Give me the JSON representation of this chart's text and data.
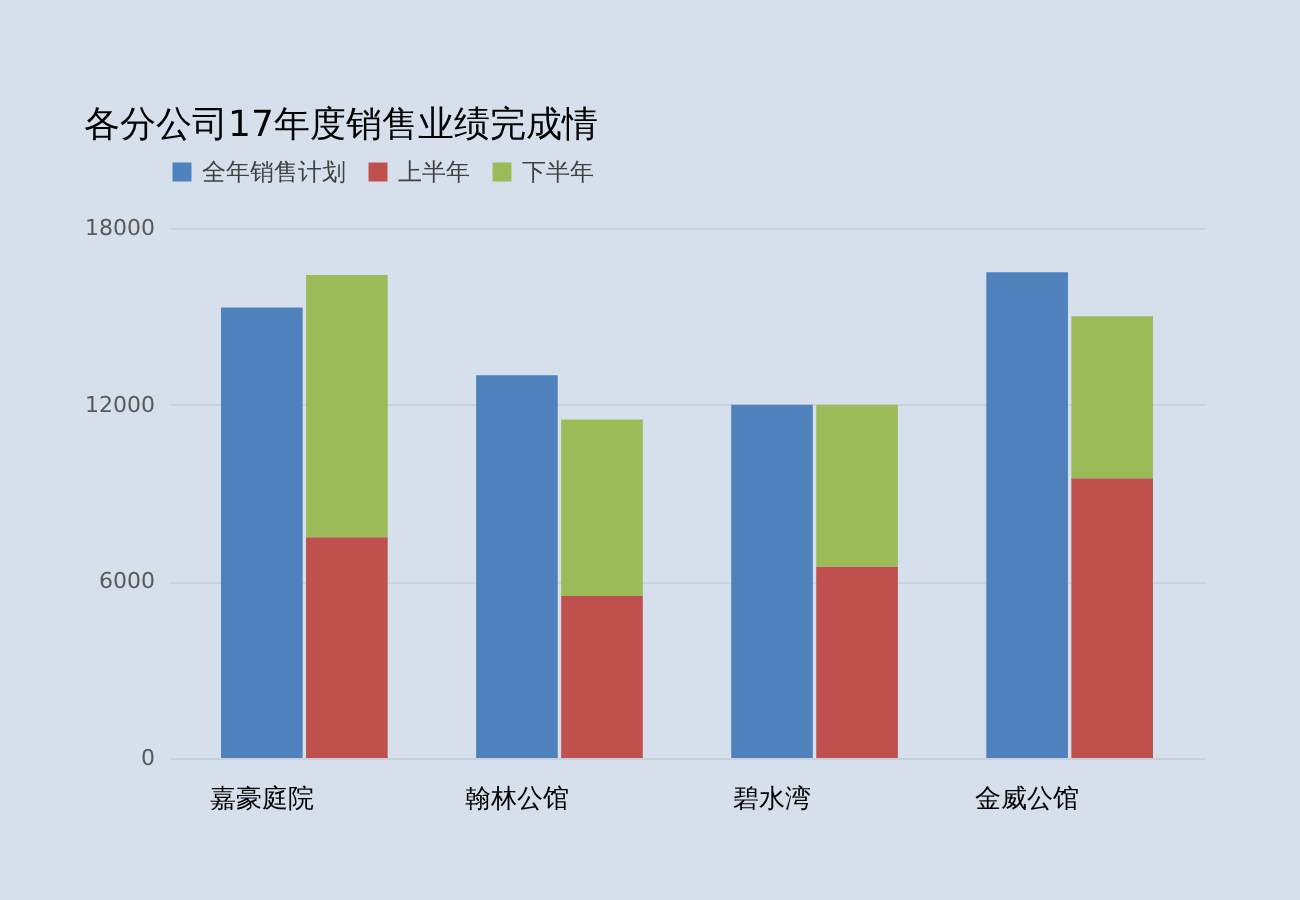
{
  "chart_data": {
    "type": "bar",
    "title": "各分公司17年度销售业绩完成情",
    "categories": [
      "嘉豪庭院",
      null,
      null,
      "翰林公馆",
      null,
      null,
      "碧水湾",
      null,
      null,
      "金威公馆",
      null
    ],
    "series": [
      {
        "name": "全年销售计划",
        "color": "#4f81bd",
        "values": [
          15300,
          null,
          null,
          13000,
          null,
          null,
          12000,
          null,
          null,
          16500,
          null
        ]
      },
      {
        "name": "上半年",
        "color": "#c0504d",
        "values": [
          null,
          7500,
          null,
          null,
          5500,
          null,
          null,
          6500,
          null,
          null,
          9500
        ]
      },
      {
        "name": "下半年",
        "color": "#9bbb59",
        "values": [
          null,
          8900,
          null,
          null,
          6000,
          null,
          null,
          5500,
          null,
          null,
          5500
        ]
      }
    ],
    "stacked": true,
    "ylim": [
      0,
      18000
    ],
    "yticks": [
      0,
      6000,
      12000,
      18000
    ],
    "grid": "y",
    "legend": "top left"
  }
}
